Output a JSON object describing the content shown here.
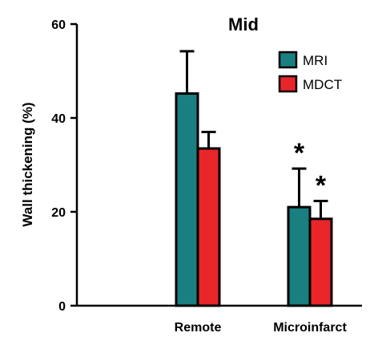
{
  "chart_data": {
    "type": "bar",
    "title": "Mid",
    "xlabel": "",
    "ylabel": "Wall thickening  (%)",
    "ylim": [
      0,
      60
    ],
    "yticks": [
      0,
      20,
      40,
      60
    ],
    "categories": [
      "Remote",
      "Microinfarct"
    ],
    "series": [
      {
        "name": "MRI",
        "values": [
          45.2,
          21.0
        ],
        "errors": [
          9.0,
          8.2
        ],
        "color": "#1a7f80"
      },
      {
        "name": "MDCT",
        "values": [
          33.5,
          18.5
        ],
        "errors": [
          3.5,
          3.8
        ],
        "color": "#e8262a"
      }
    ],
    "annotations": [
      {
        "category": "Microinfarct",
        "series": "MRI",
        "text": "*"
      },
      {
        "category": "Microinfarct",
        "series": "MDCT",
        "text": "*"
      }
    ],
    "legend_position": "top-right",
    "grid": false
  }
}
